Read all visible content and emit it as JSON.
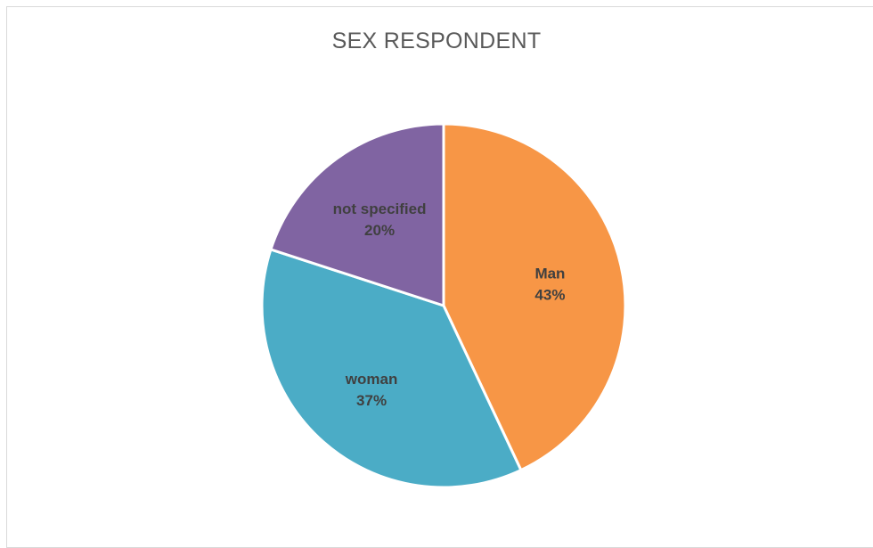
{
  "chart_data": {
    "type": "pie",
    "title": "SEX RESPONDENT",
    "categories": [
      "Man",
      "woman",
      "not specified"
    ],
    "values": [
      43,
      37,
      20
    ],
    "value_labels": [
      "43%",
      "37%",
      "20%"
    ],
    "colors": [
      "#F79646",
      "#4BACC6",
      "#8064A2"
    ],
    "start": "12 o'clock",
    "direction": "clockwise",
    "legend": "none"
  }
}
